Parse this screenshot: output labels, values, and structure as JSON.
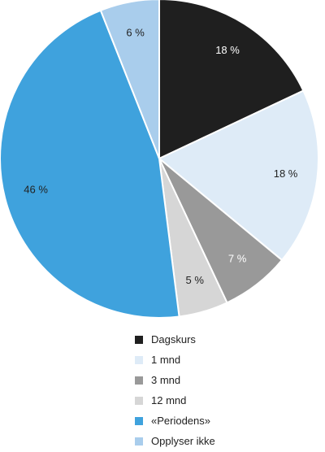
{
  "chart_data": {
    "type": "pie",
    "slices": [
      {
        "label": "Dagskurs",
        "value": 18,
        "value_label": "18 %",
        "color": "#1f1f1f",
        "label_color": "#ffffff"
      },
      {
        "label": "1 mnd",
        "value": 18,
        "value_label": "18 %",
        "color": "#deebf7",
        "label_color": "#222222"
      },
      {
        "label": "3 mnd",
        "value": 7,
        "value_label": "7 %",
        "color": "#999999",
        "label_color": "#ffffff"
      },
      {
        "label": "12 mnd",
        "value": 5,
        "value_label": "5 %",
        "color": "#d6d6d6",
        "label_color": "#222222"
      },
      {
        "label": "«Periodens»",
        "value": 46,
        "value_label": "46 %",
        "color": "#3fa2dd",
        "label_color": "#222222"
      },
      {
        "label": "Opplyser ikke",
        "value": 6,
        "value_label": "6 %",
        "color": "#a9cdec",
        "label_color": "#222222"
      }
    ],
    "start": "top",
    "direction": "clockwise",
    "legend_position": "bottom"
  }
}
